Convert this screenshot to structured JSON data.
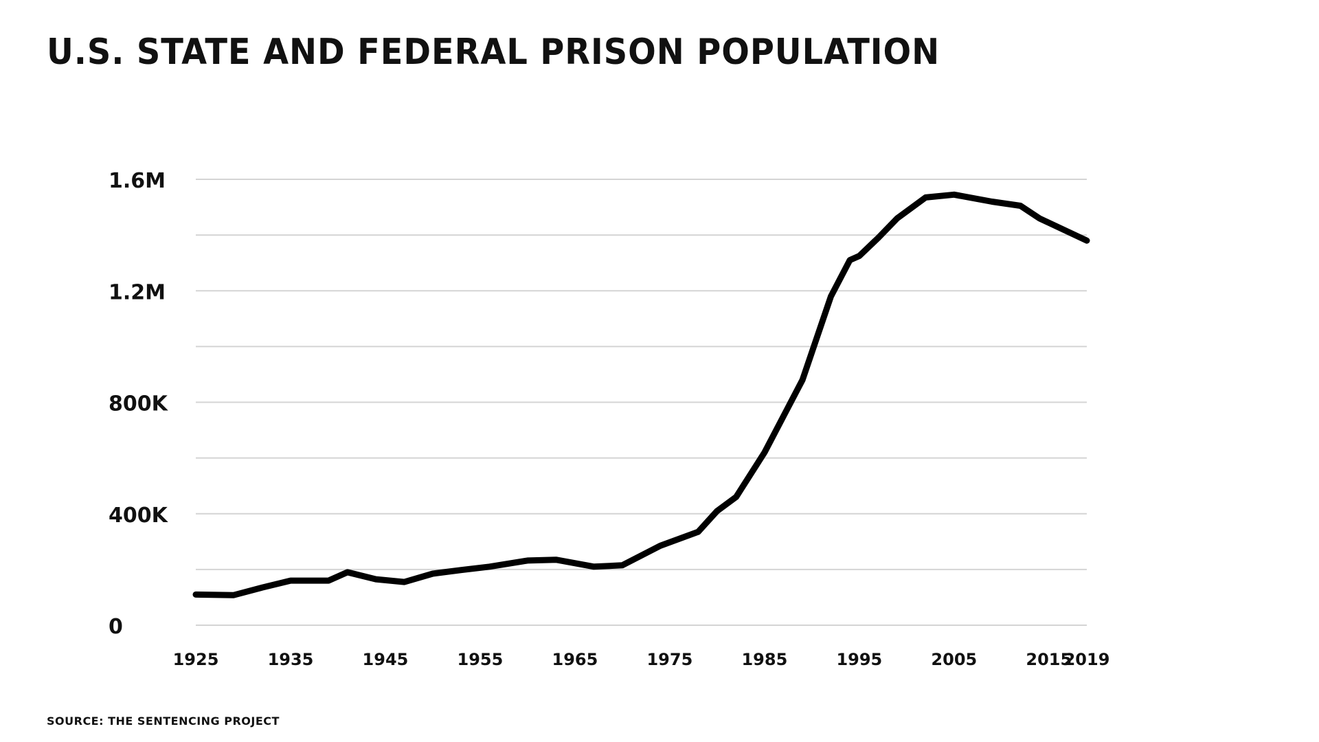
{
  "title": "U.S. STATE AND FEDERAL PRISON POPULATION",
  "source": "SOURCE: THE SENTENCING PROJECT",
  "chart_data": {
    "type": "line",
    "title": "U.S. STATE AND FEDERAL PRISON POPULATION",
    "xlabel": "",
    "ylabel": "",
    "xlim": [
      1925,
      2019
    ],
    "ylim": [
      0,
      1600000
    ],
    "grid": true,
    "line_color": "#000000",
    "grid_color": "#d4d4d4",
    "y_ticks": [
      {
        "value": 0,
        "label": "0"
      },
      {
        "value": 400000,
        "label": "400K"
      },
      {
        "value": 800000,
        "label": "800K"
      },
      {
        "value": 1200000,
        "label": "1.2M"
      },
      {
        "value": 1600000,
        "label": "1.6M"
      }
    ],
    "y_gridlines": [
      0,
      200000,
      400000,
      600000,
      800000,
      1000000,
      1200000,
      1400000,
      1600000
    ],
    "x_ticks": [
      {
        "value": 1925,
        "label": "1925"
      },
      {
        "value": 1935,
        "label": "1935"
      },
      {
        "value": 1945,
        "label": "1945"
      },
      {
        "value": 1955,
        "label": "1955"
      },
      {
        "value": 1965,
        "label": "1965"
      },
      {
        "value": 1975,
        "label": "1975"
      },
      {
        "value": 1985,
        "label": "1985"
      },
      {
        "value": 1995,
        "label": "1995"
      },
      {
        "value": 2005,
        "label": "2005"
      },
      {
        "value": 2015,
        "label": "2015"
      },
      {
        "value": 2019,
        "label": "2019"
      }
    ],
    "series": [
      {
        "x": [
          1925,
          1929,
          1932,
          1935,
          1939,
          1941,
          1944,
          1947,
          1950,
          1953,
          1956,
          1960,
          1963,
          1967,
          1970,
          1974,
          1978,
          1980,
          1982,
          1985,
          1989,
          1991,
          1992,
          1994,
          1995,
          1997,
          1999,
          2002,
          2005,
          2009,
          2012,
          2014,
          2019
        ],
        "y": [
          110000,
          108000,
          135000,
          160000,
          160000,
          190000,
          165000,
          155000,
          185000,
          198000,
          210000,
          232000,
          235000,
          210000,
          215000,
          285000,
          335000,
          410000,
          460000,
          620000,
          880000,
          1080000,
          1180000,
          1310000,
          1325000,
          1390000,
          1460000,
          1535000,
          1545000,
          1520000,
          1505000,
          1460000,
          1380000
        ]
      }
    ]
  }
}
